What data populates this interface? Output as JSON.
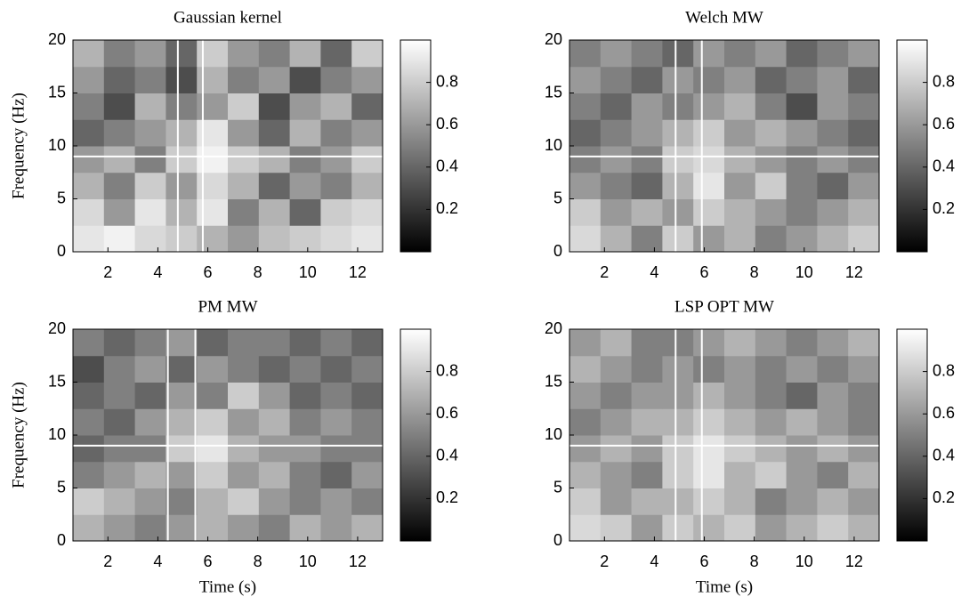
{
  "chart_data": [
    {
      "type": "heatmap",
      "title": "Gaussian kernel",
      "ylabel": "Frequency (Hz)",
      "x": [
        1.22,
        2.46,
        3.7,
        4.94,
        6.18,
        7.42,
        8.66,
        9.9,
        11.14,
        12.38
      ],
      "y": [
        1.25,
        3.75,
        6.25,
        8.75,
        11.25,
        13.75,
        16.25,
        18.75
      ],
      "z": [
        [
          0.9,
          0.95,
          0.85,
          0.8,
          0.7,
          0.6,
          0.75,
          0.8,
          0.85,
          0.9
        ],
        [
          0.85,
          0.6,
          0.9,
          0.7,
          0.9,
          0.5,
          0.7,
          0.4,
          0.8,
          0.85
        ],
        [
          0.7,
          0.5,
          0.8,
          0.6,
          0.85,
          0.7,
          0.4,
          0.6,
          0.5,
          0.7
        ],
        [
          0.6,
          0.7,
          0.5,
          0.8,
          0.95,
          0.8,
          0.7,
          0.5,
          0.6,
          0.8
        ],
        [
          0.4,
          0.5,
          0.6,
          0.7,
          0.9,
          0.6,
          0.4,
          0.7,
          0.5,
          0.6
        ],
        [
          0.5,
          0.3,
          0.7,
          0.5,
          0.6,
          0.8,
          0.3,
          0.6,
          0.7,
          0.4
        ],
        [
          0.6,
          0.4,
          0.5,
          0.3,
          0.7,
          0.5,
          0.6,
          0.3,
          0.5,
          0.6
        ],
        [
          0.7,
          0.5,
          0.6,
          0.4,
          0.8,
          0.6,
          0.5,
          0.7,
          0.4,
          0.8
        ]
      ],
      "xlim": [
        0.6,
        13.0
      ],
      "ylim": [
        0,
        20
      ],
      "xticks": [
        2,
        4,
        6,
        8,
        10,
        12
      ],
      "yticks": [
        0,
        5,
        10,
        15,
        20
      ],
      "clim": [
        0,
        1
      ],
      "cticks": [
        0.2,
        0.4,
        0.6,
        0.8
      ],
      "vlines": [
        4.8,
        5.8
      ],
      "hline": 9
    },
    {
      "type": "heatmap",
      "title": "Welch MW",
      "x": [
        1.22,
        2.46,
        3.7,
        4.94,
        6.18,
        7.42,
        8.66,
        9.9,
        11.14,
        12.38
      ],
      "y": [
        1.25,
        3.75,
        6.25,
        8.75,
        11.25,
        13.75,
        16.25,
        18.75
      ],
      "z": [
        [
          0.85,
          0.7,
          0.5,
          0.8,
          0.6,
          0.7,
          0.5,
          0.6,
          0.7,
          0.8
        ],
        [
          0.8,
          0.6,
          0.7,
          0.6,
          0.8,
          0.7,
          0.6,
          0.5,
          0.6,
          0.7
        ],
        [
          0.6,
          0.5,
          0.4,
          0.7,
          0.9,
          0.6,
          0.8,
          0.5,
          0.4,
          0.6
        ],
        [
          0.5,
          0.6,
          0.5,
          0.8,
          0.85,
          0.7,
          0.6,
          0.5,
          0.6,
          0.5
        ],
        [
          0.4,
          0.5,
          0.6,
          0.7,
          0.8,
          0.6,
          0.7,
          0.6,
          0.5,
          0.4
        ],
        [
          0.5,
          0.4,
          0.6,
          0.5,
          0.6,
          0.7,
          0.5,
          0.3,
          0.6,
          0.5
        ],
        [
          0.6,
          0.5,
          0.4,
          0.6,
          0.5,
          0.6,
          0.4,
          0.5,
          0.6,
          0.4
        ],
        [
          0.5,
          0.6,
          0.5,
          0.4,
          0.6,
          0.5,
          0.6,
          0.4,
          0.5,
          0.6
        ]
      ],
      "xlim": [
        0.6,
        13.0
      ],
      "ylim": [
        0,
        20
      ],
      "xticks": [
        2,
        4,
        6,
        8,
        10,
        12
      ],
      "yticks": [
        0,
        5,
        10,
        15,
        20
      ],
      "clim": [
        0,
        1
      ],
      "cticks": [
        0.2,
        0.4,
        0.6,
        0.8
      ],
      "vlines": [
        4.85,
        5.9
      ],
      "hline": 9
    },
    {
      "type": "heatmap",
      "title": "PM MW",
      "xlabel": "Time (s)",
      "ylabel": "Frequency (Hz)",
      "x": [
        1.22,
        2.46,
        3.7,
        4.94,
        6.18,
        7.42,
        8.66,
        9.9,
        11.14,
        12.38
      ],
      "y": [
        1.25,
        3.75,
        6.25,
        8.75,
        11.25,
        13.75,
        16.25,
        18.75
      ],
      "z": [
        [
          0.7,
          0.6,
          0.5,
          0.6,
          0.7,
          0.6,
          0.5,
          0.7,
          0.6,
          0.7
        ],
        [
          0.8,
          0.7,
          0.6,
          0.5,
          0.7,
          0.8,
          0.6,
          0.5,
          0.6,
          0.5
        ],
        [
          0.5,
          0.6,
          0.7,
          0.6,
          0.8,
          0.6,
          0.7,
          0.5,
          0.4,
          0.6
        ],
        [
          0.4,
          0.5,
          0.5,
          0.8,
          0.9,
          0.7,
          0.6,
          0.6,
          0.5,
          0.5
        ],
        [
          0.5,
          0.4,
          0.6,
          0.7,
          0.8,
          0.6,
          0.7,
          0.5,
          0.6,
          0.5
        ],
        [
          0.4,
          0.5,
          0.4,
          0.6,
          0.5,
          0.8,
          0.6,
          0.4,
          0.5,
          0.4
        ],
        [
          0.3,
          0.5,
          0.6,
          0.4,
          0.6,
          0.5,
          0.4,
          0.5,
          0.4,
          0.5
        ],
        [
          0.5,
          0.4,
          0.5,
          0.6,
          0.4,
          0.5,
          0.5,
          0.4,
          0.5,
          0.4
        ]
      ],
      "xlim": [
        0.6,
        13.0
      ],
      "ylim": [
        0,
        20
      ],
      "xticks": [
        2,
        4,
        6,
        8,
        10,
        12
      ],
      "yticks": [
        0,
        5,
        10,
        15,
        20
      ],
      "clim": [
        0,
        1
      ],
      "cticks": [
        0.2,
        0.4,
        0.6,
        0.8
      ],
      "vlines": [
        4.4,
        5.5
      ],
      "hline": 9
    },
    {
      "type": "heatmap",
      "title": "LSP OPT MW",
      "xlabel": "Time (s)",
      "x": [
        1.22,
        2.46,
        3.7,
        4.94,
        6.18,
        7.42,
        8.66,
        9.9,
        11.14,
        12.38
      ],
      "y": [
        1.25,
        3.75,
        6.25,
        8.75,
        11.25,
        13.75,
        16.25,
        18.75
      ],
      "z": [
        [
          0.85,
          0.8,
          0.6,
          0.8,
          0.7,
          0.8,
          0.6,
          0.7,
          0.8,
          0.7
        ],
        [
          0.8,
          0.6,
          0.7,
          0.7,
          0.8,
          0.7,
          0.5,
          0.6,
          0.7,
          0.6
        ],
        [
          0.7,
          0.6,
          0.5,
          0.8,
          0.9,
          0.7,
          0.8,
          0.6,
          0.5,
          0.7
        ],
        [
          0.6,
          0.7,
          0.6,
          0.8,
          0.9,
          0.8,
          0.7,
          0.6,
          0.7,
          0.6
        ],
        [
          0.5,
          0.6,
          0.7,
          0.7,
          0.8,
          0.7,
          0.6,
          0.7,
          0.6,
          0.5
        ],
        [
          0.6,
          0.5,
          0.6,
          0.6,
          0.7,
          0.6,
          0.5,
          0.4,
          0.6,
          0.5
        ],
        [
          0.7,
          0.6,
          0.5,
          0.6,
          0.5,
          0.6,
          0.5,
          0.6,
          0.5,
          0.6
        ],
        [
          0.6,
          0.7,
          0.5,
          0.5,
          0.6,
          0.7,
          0.6,
          0.5,
          0.6,
          0.7
        ]
      ],
      "xlim": [
        0.6,
        13.0
      ],
      "ylim": [
        0,
        20
      ],
      "xticks": [
        2,
        4,
        6,
        8,
        10,
        12
      ],
      "yticks": [
        0,
        5,
        10,
        15,
        20
      ],
      "clim": [
        0,
        1
      ],
      "cticks": [
        0.2,
        0.4,
        0.6,
        0.8
      ],
      "vlines": [
        4.85,
        5.9
      ],
      "hline": 9
    }
  ]
}
